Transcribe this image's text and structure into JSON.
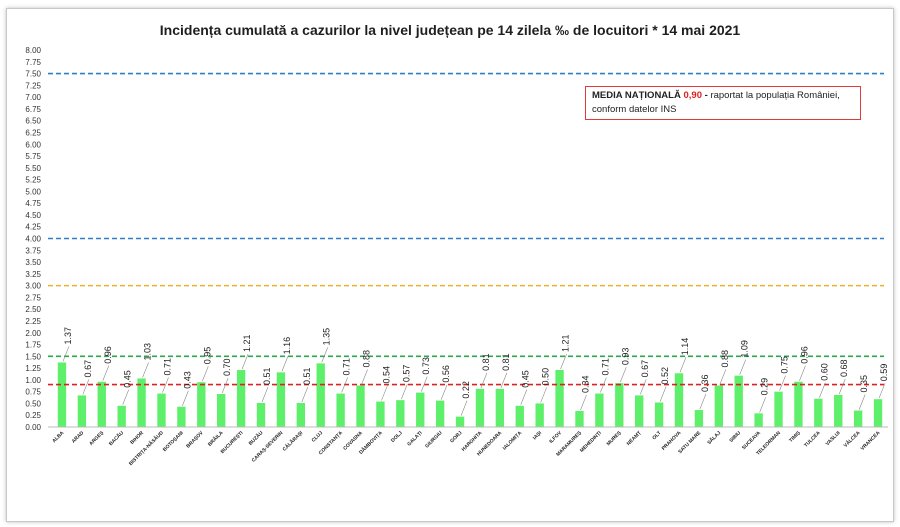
{
  "chart_data": {
    "type": "bar",
    "title": "Incidența cumulată a cazurilor la nivel județean pe 14 zilela ‰ de locuitori *  14 mai 2021",
    "categories": [
      "ALBA",
      "ARAD",
      "ARGEȘ",
      "BACĂU",
      "BIHOR",
      "BISTRIȚA-NĂSĂUD",
      "BOTOȘANI",
      "BRAȘOV",
      "BRĂILA",
      "BUCUREȘTI",
      "BUZĂU",
      "CARAȘ-SEVERIN",
      "CĂLĂRAȘI",
      "CLUJ",
      "CONSTANȚA",
      "COVASNA",
      "DÂMBOVIȚA",
      "DOLJ",
      "GALAȚI",
      "GIURGIU",
      "GORJ",
      "HARGHITA",
      "HUNEDOARA",
      "IALOMIȚA",
      "IAȘI",
      "ILFOV",
      "MARAMUREȘ",
      "MEHEDINȚI",
      "MUREȘ",
      "NEAMȚ",
      "OLT",
      "PRAHOVA",
      "SATU MARE",
      "SĂLAJ",
      "SIBIU",
      "SUCEAVA",
      "TELEORMAN",
      "TIMIȘ",
      "TULCEA",
      "VASLUI",
      "VÂLCEA",
      "VRANCEA"
    ],
    "values": [
      1.37,
      0.67,
      0.96,
      0.45,
      1.03,
      0.71,
      0.43,
      0.95,
      0.7,
      1.21,
      0.51,
      1.16,
      0.51,
      1.35,
      0.71,
      0.88,
      0.54,
      0.57,
      0.73,
      0.56,
      0.22,
      0.81,
      0.81,
      0.45,
      0.5,
      1.21,
      0.34,
      0.71,
      0.93,
      0.67,
      0.52,
      1.14,
      0.36,
      0.88,
      1.09,
      0.29,
      0.75,
      0.96,
      0.6,
      0.68,
      0.35,
      0.59
    ],
    "value_labels": [
      "1.37",
      "0.67",
      "0.96",
      "0.45",
      "1.03",
      "0.71",
      "0.43",
      "0.95",
      "0.70",
      "1.21",
      "0.51",
      "1.16",
      "0.51",
      "1.35",
      "0.71",
      "0.88",
      "0.54",
      "0.57",
      "0.73",
      "0.56",
      "0.22",
      "0.81",
      "0.81",
      "0.45",
      "0.50",
      "1.21",
      "0.34",
      "0.71",
      "0.93",
      "0.67",
      "0.52",
      "1.14",
      "0.36",
      "0.88",
      "1.09",
      "0.29",
      "0.75",
      "0.96",
      "0.60",
      "0.68",
      "0.35",
      "0.59"
    ],
    "ylim": [
      0,
      8
    ],
    "yticks": [
      "0.00",
      "0.25",
      "0.50",
      "0.75",
      "1.00",
      "1.25",
      "1.50",
      "1.75",
      "2.00",
      "2.25",
      "2.50",
      "2.75",
      "3.00",
      "3.25",
      "3.50",
      "3.75",
      "4.00",
      "4.25",
      "4.50",
      "4.75",
      "5.00",
      "5.25",
      "5.50",
      "5.75",
      "6.00",
      "6.25",
      "6.50",
      "6.75",
      "7.00",
      "7.25",
      "7.50",
      "7.75",
      "8.00"
    ],
    "reference_lines": [
      {
        "value": 7.5,
        "color": "#2f7fc6"
      },
      {
        "value": 4.0,
        "color": "#2f7fc6"
      },
      {
        "value": 3.0,
        "color": "#e8b12c"
      },
      {
        "value": 1.5,
        "color": "#2aa84a"
      },
      {
        "value": 0.9,
        "color": "#e02020"
      }
    ],
    "bar_color": "#5ef06a",
    "grid": false
  },
  "legend": {
    "title": "MEDIA NAȚIONALĂ",
    "value": "0,90",
    "dash": " - ",
    "text_line1": "raportat la populația României,",
    "text_line2": "conform datelor INS"
  }
}
